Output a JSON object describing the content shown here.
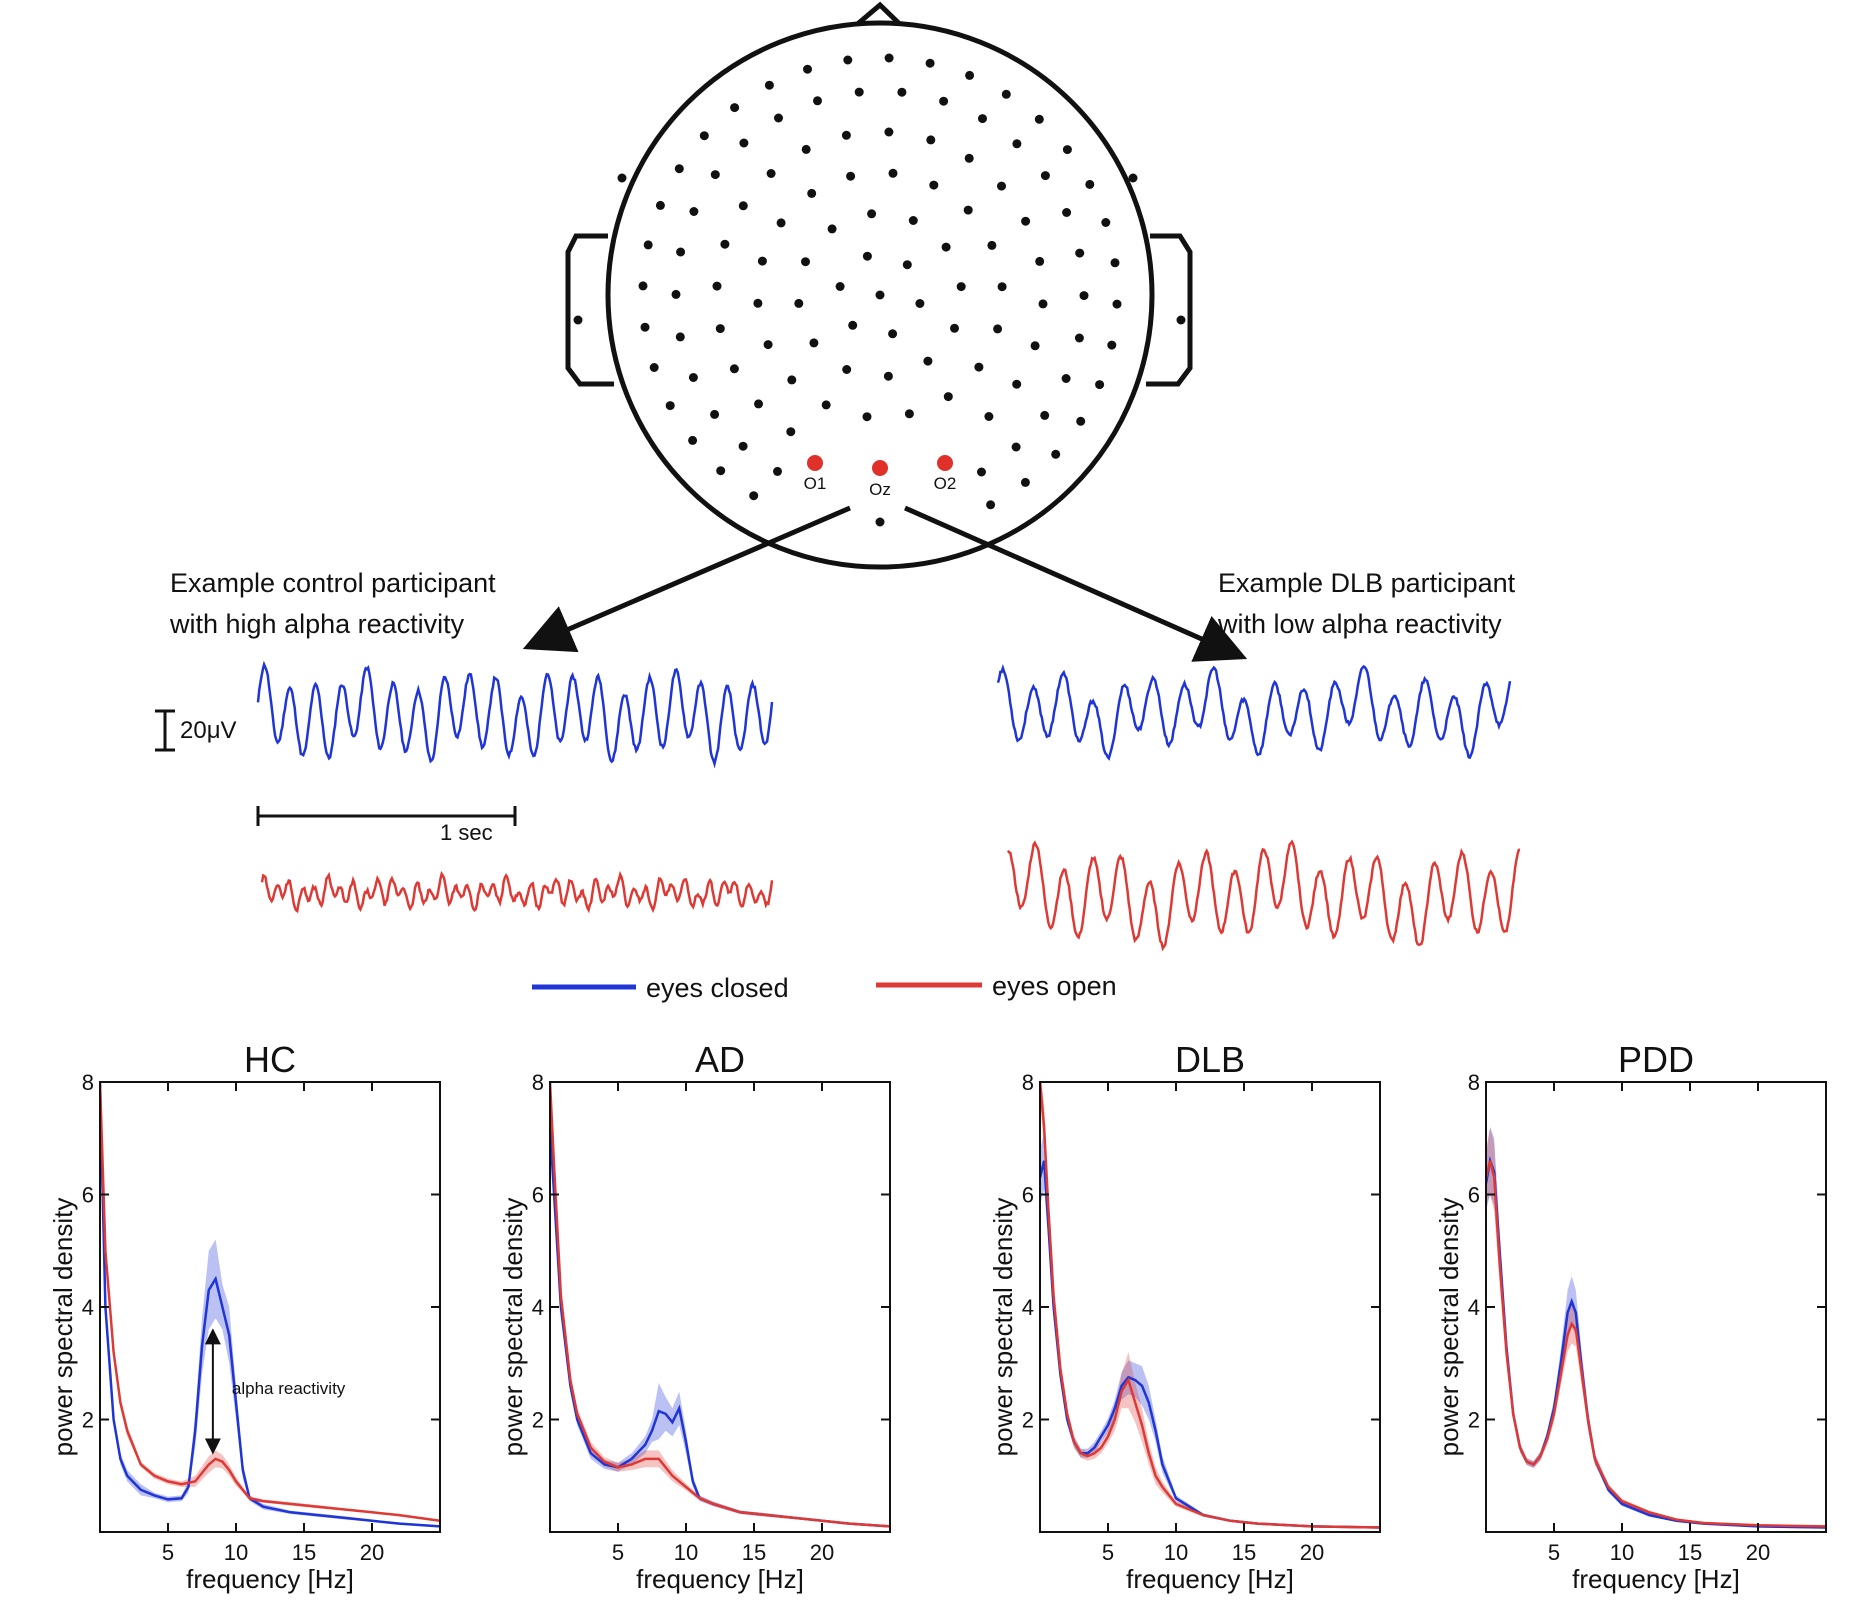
{
  "head": {
    "highlight_color": "#e0302a",
    "electrodes": [
      "O1",
      "Oz",
      "O2"
    ]
  },
  "examples": {
    "left_caption": [
      "Example control participant",
      "with high alpha reactivity"
    ],
    "right_caption": [
      "Example DLB participant",
      "with low alpha reactivity"
    ],
    "amplitude_scale": "20μV",
    "time_scale": "1 sec"
  },
  "legend": {
    "items": [
      {
        "label": "eyes closed",
        "color": "#1f35d6"
      },
      {
        "label": "eyes open",
        "color": "#de3a35"
      }
    ]
  },
  "chart_data": [
    {
      "type": "line",
      "title": "HC",
      "xlabel": "frequency [Hz]",
      "ylabel": "power spectral density",
      "xlim": [
        0,
        25
      ],
      "ylim": [
        0,
        8
      ],
      "xticks": [
        5,
        10,
        15,
        20
      ],
      "yticks": [
        2,
        4,
        6,
        8
      ],
      "annotation": "alpha reactivity",
      "series": [
        {
          "name": "eyes closed",
          "color": "#1f35d6",
          "x": [
            0,
            0.4,
            1,
            1.5,
            2,
            3,
            4,
            5,
            6,
            6.5,
            7,
            7.5,
            8,
            8.5,
            9,
            9.5,
            10,
            10.5,
            11,
            12,
            14,
            16,
            18,
            20,
            22,
            25
          ],
          "y": [
            8,
            4,
            2,
            1.3,
            1,
            0.75,
            0.65,
            0.58,
            0.6,
            0.8,
            1.8,
            3.3,
            4.3,
            4.5,
            4,
            3.5,
            2.3,
            1.1,
            0.6,
            0.45,
            0.35,
            0.3,
            0.25,
            0.2,
            0.15,
            0.1
          ],
          "band": [
            0,
            0,
            0.1,
            0.1,
            0.1,
            0.1,
            0.05,
            0.05,
            0.05,
            0.1,
            0.3,
            0.5,
            0.7,
            0.7,
            0.4,
            0.5,
            0.3,
            0.15,
            0.05,
            0.05,
            0.03,
            0.03,
            0.03,
            0.02,
            0.02,
            0.02
          ]
        },
        {
          "name": "eyes open",
          "color": "#de3a35",
          "x": [
            0,
            0.4,
            1,
            1.5,
            2,
            3,
            4,
            5,
            6,
            7,
            7.5,
            8,
            8.5,
            9,
            9.5,
            10,
            10.5,
            11,
            12,
            14,
            16,
            18,
            20,
            22,
            25
          ],
          "y": [
            8,
            5,
            3.2,
            2.3,
            1.8,
            1.2,
            1,
            0.9,
            0.85,
            0.9,
            1.05,
            1.2,
            1.3,
            1.25,
            1.1,
            0.9,
            0.75,
            0.6,
            0.55,
            0.5,
            0.45,
            0.4,
            0.35,
            0.3,
            0.2
          ],
          "band": [
            0,
            0,
            0.1,
            0.1,
            0.1,
            0.05,
            0.05,
            0.05,
            0.05,
            0.1,
            0.12,
            0.15,
            0.15,
            0.12,
            0.1,
            0.08,
            0.05,
            0.04,
            0.03,
            0.03,
            0.03,
            0.02,
            0.02,
            0.02,
            0.02
          ]
        }
      ]
    },
    {
      "type": "line",
      "title": "AD",
      "xlabel": "frequency [Hz]",
      "ylabel": "power spectral density",
      "xlim": [
        0,
        25
      ],
      "ylim": [
        0,
        8
      ],
      "xticks": [
        5,
        10,
        15,
        20
      ],
      "yticks": [
        2,
        4,
        6,
        8
      ],
      "series": [
        {
          "name": "eyes closed",
          "color": "#1f35d6",
          "x": [
            0,
            0.3,
            0.8,
            1.5,
            2,
            3,
            4,
            5,
            6,
            7,
            7.5,
            8,
            8.5,
            9,
            9.5,
            10,
            10.5,
            11,
            12,
            14,
            16,
            18,
            20,
            22,
            25
          ],
          "y": [
            7.2,
            6,
            4,
            2.6,
            2,
            1.4,
            1.2,
            1.15,
            1.3,
            1.55,
            1.8,
            2.15,
            2.1,
            1.95,
            2.2,
            1.6,
            0.9,
            0.6,
            0.5,
            0.35,
            0.3,
            0.25,
            0.2,
            0.15,
            0.1
          ],
          "band": [
            0.2,
            0.2,
            0.15,
            0.1,
            0.1,
            0.1,
            0.08,
            0.08,
            0.1,
            0.15,
            0.2,
            0.5,
            0.3,
            0.25,
            0.3,
            0.2,
            0.1,
            0.05,
            0.04,
            0.03,
            0.03,
            0.02,
            0.02,
            0.02,
            0.02
          ]
        },
        {
          "name": "eyes open",
          "color": "#de3a35",
          "x": [
            0,
            0.3,
            0.8,
            1.5,
            2,
            3,
            4,
            5,
            6,
            7,
            8,
            8.5,
            9,
            9.5,
            10,
            10.5,
            11,
            12,
            14,
            16,
            18,
            20,
            22,
            25
          ],
          "y": [
            8,
            6.5,
            4.2,
            2.7,
            2.1,
            1.5,
            1.25,
            1.15,
            1.2,
            1.3,
            1.3,
            1.15,
            1,
            0.9,
            0.8,
            0.7,
            0.6,
            0.5,
            0.35,
            0.3,
            0.25,
            0.2,
            0.15,
            0.1
          ],
          "band": [
            0.2,
            0.2,
            0.15,
            0.1,
            0.1,
            0.1,
            0.08,
            0.08,
            0.1,
            0.15,
            0.15,
            0.12,
            0.1,
            0.08,
            0.06,
            0.05,
            0.04,
            0.04,
            0.03,
            0.03,
            0.02,
            0.02,
            0.02,
            0.02
          ]
        }
      ]
    },
    {
      "type": "line",
      "title": "DLB",
      "xlabel": "frequency [Hz]",
      "ylabel": "power spectral density",
      "xlim": [
        0,
        25
      ],
      "ylim": [
        0,
        8
      ],
      "xticks": [
        5,
        10,
        15,
        20
      ],
      "yticks": [
        2,
        4,
        6,
        8
      ],
      "series": [
        {
          "name": "eyes closed",
          "color": "#1f35d6",
          "x": [
            0,
            0.3,
            0.6,
            1,
            1.5,
            2,
            2.5,
            3,
            3.5,
            4,
            4.5,
            5,
            5.5,
            6,
            6.5,
            7,
            7.5,
            8,
            8.5,
            9,
            10,
            12,
            14,
            16,
            20,
            25
          ],
          "y": [
            6.3,
            6.6,
            5.5,
            4,
            2.8,
            2,
            1.6,
            1.4,
            1.4,
            1.5,
            1.7,
            1.9,
            2.2,
            2.6,
            2.75,
            2.7,
            2.6,
            2.3,
            1.8,
            1.2,
            0.6,
            0.3,
            0.2,
            0.15,
            0.1,
            0.08
          ],
          "band": [
            0.5,
            0.5,
            0.3,
            0.2,
            0.15,
            0.1,
            0.1,
            0.08,
            0.08,
            0.1,
            0.1,
            0.12,
            0.15,
            0.25,
            0.3,
            0.3,
            0.35,
            0.3,
            0.2,
            0.15,
            0.05,
            0.03,
            0.02,
            0.02,
            0.02,
            0.02
          ]
        },
        {
          "name": "eyes open",
          "color": "#de3a35",
          "x": [
            0,
            0.3,
            0.6,
            1,
            1.5,
            2,
            2.5,
            3,
            3.5,
            4,
            4.5,
            5,
            5.5,
            6,
            6.5,
            7,
            7.5,
            8,
            8.5,
            9,
            10,
            12,
            14,
            16,
            20,
            25
          ],
          "y": [
            8,
            7.2,
            5.8,
            4.2,
            2.9,
            2.1,
            1.6,
            1.4,
            1.35,
            1.4,
            1.5,
            1.7,
            2,
            2.5,
            2.7,
            2.3,
            1.9,
            1.4,
            1,
            0.8,
            0.5,
            0.3,
            0.2,
            0.15,
            0.1,
            0.08
          ],
          "band": [
            0.3,
            0.4,
            0.3,
            0.2,
            0.15,
            0.1,
            0.1,
            0.08,
            0.08,
            0.1,
            0.1,
            0.12,
            0.2,
            0.3,
            0.5,
            0.35,
            0.3,
            0.2,
            0.15,
            0.1,
            0.05,
            0.03,
            0.02,
            0.02,
            0.02,
            0.02
          ]
        }
      ]
    },
    {
      "type": "line",
      "title": "PDD",
      "xlabel": "frequency [Hz]",
      "ylabel": "power spectral density",
      "xlim": [
        0,
        25
      ],
      "ylim": [
        0,
        8
      ],
      "xticks": [
        5,
        10,
        15,
        20
      ],
      "yticks": [
        2,
        4,
        6,
        8
      ],
      "series": [
        {
          "name": "eyes closed",
          "color": "#1f35d6",
          "x": [
            0,
            0.3,
            0.6,
            1,
            1.5,
            2,
            2.5,
            3,
            3.5,
            4,
            4.5,
            5,
            5.5,
            6,
            6.3,
            6.6,
            7,
            7.5,
            8,
            9,
            10,
            12,
            14,
            16,
            20,
            25
          ],
          "y": [
            6.2,
            6.6,
            6.4,
            5,
            3.3,
            2.1,
            1.5,
            1.25,
            1.2,
            1.35,
            1.7,
            2.2,
            3,
            3.9,
            4.1,
            3.9,
            3,
            2,
            1.3,
            0.75,
            0.5,
            0.3,
            0.2,
            0.15,
            0.1,
            0.08
          ],
          "band": [
            0.5,
            0.6,
            0.6,
            0.4,
            0.2,
            0.1,
            0.08,
            0.06,
            0.06,
            0.08,
            0.1,
            0.15,
            0.25,
            0.4,
            0.45,
            0.4,
            0.3,
            0.2,
            0.1,
            0.05,
            0.04,
            0.03,
            0.02,
            0.02,
            0.02,
            0.02
          ]
        },
        {
          "name": "eyes open",
          "color": "#de3a35",
          "x": [
            0,
            0.3,
            0.6,
            1,
            1.5,
            2,
            2.5,
            3,
            3.5,
            4,
            4.5,
            5,
            5.5,
            6,
            6.3,
            6.6,
            7,
            7.5,
            8,
            9,
            10,
            12,
            14,
            16,
            20,
            25
          ],
          "y": [
            6.3,
            6.6,
            6.3,
            4.8,
            3.2,
            2.1,
            1.5,
            1.25,
            1.2,
            1.35,
            1.65,
            2.1,
            2.8,
            3.5,
            3.7,
            3.6,
            2.9,
            2,
            1.3,
            0.8,
            0.55,
            0.35,
            0.22,
            0.16,
            0.12,
            0.1
          ],
          "band": [
            0.5,
            0.6,
            0.6,
            0.4,
            0.2,
            0.1,
            0.08,
            0.06,
            0.06,
            0.08,
            0.1,
            0.15,
            0.2,
            0.3,
            0.35,
            0.3,
            0.25,
            0.15,
            0.1,
            0.05,
            0.04,
            0.03,
            0.02,
            0.02,
            0.02,
            0.02
          ]
        }
      ]
    }
  ]
}
